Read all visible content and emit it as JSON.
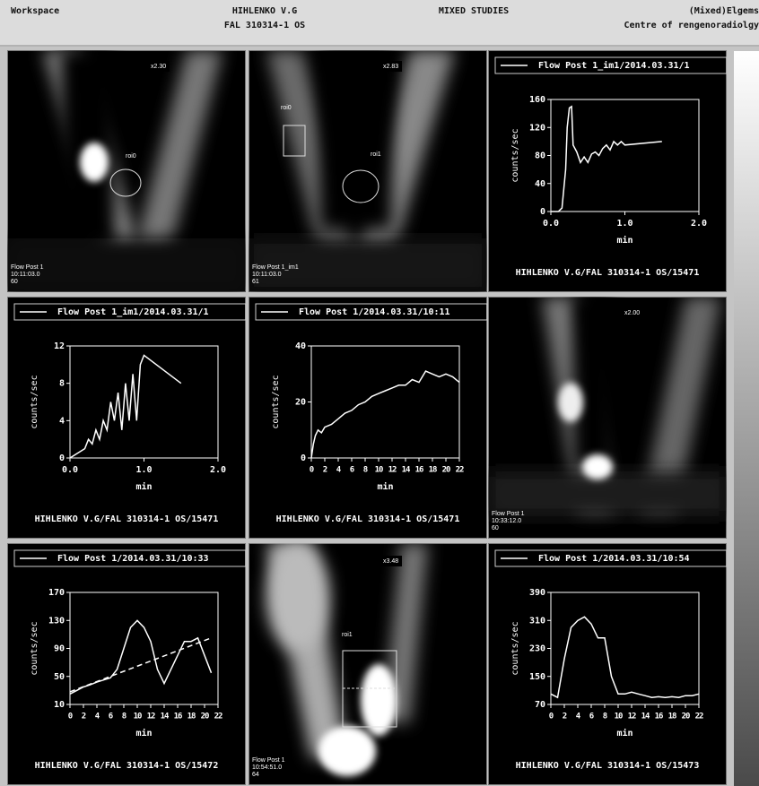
{
  "header": {
    "workspace": "Workspace",
    "patient": "HIHLENKO V.G",
    "study_id": "FAL 310314-1 OS",
    "study": "MIXED STUDIES",
    "vendor": "(Mixed)Elgems",
    "centre": "Centre of rengenoradiolgy"
  },
  "image_panels": [
    {
      "zoom": "x2.30",
      "rois": [
        "roi0"
      ],
      "footer": [
        "Flow Post 1",
        "10:11:03.0",
        "60"
      ]
    },
    {
      "zoom": "x2.83",
      "rois": [
        "roi0",
        "roi1"
      ],
      "footer": [
        "Flow Post 1_im1",
        "10:11:03.0",
        "61"
      ]
    },
    {
      "zoom": "x2.00",
      "rois": [],
      "footer": [
        "Flow Post 1",
        "10:33:12.0",
        "60"
      ]
    },
    {
      "zoom": "x3.48",
      "rois": [
        "roi1"
      ],
      "footer": [
        "Flow Post 1",
        "10:54:51.0",
        "64"
      ]
    }
  ],
  "chart_data": [
    {
      "type": "line",
      "ylabel": "counts/sec",
      "xlabel": "min",
      "footer": "HIHLENKO V.G/FAL 310314-1 OS/15471",
      "xlim": [
        0,
        2
      ],
      "xticks": [
        {
          "value": 0,
          "label": "0.0"
        },
        {
          "value": 1,
          "label": "1.0"
        },
        {
          "value": 2,
          "label": "2.0"
        }
      ],
      "ylim": [
        0,
        160
      ],
      "yticks": [
        0,
        40,
        80,
        120,
        160
      ],
      "x": [
        0,
        0.1,
        0.15,
        0.2,
        0.22,
        0.25,
        0.28,
        0.3,
        0.35,
        0.4,
        0.45,
        0.5,
        0.55,
        0.6,
        0.65,
        0.7,
        0.75,
        0.8,
        0.85,
        0.9,
        0.95,
        1.0,
        1.5
      ],
      "series": [
        {
          "name": "Flow Post 1_im1/2014.03.31/1",
          "color": "#ffffff",
          "values": [
            0,
            0,
            5,
            60,
            120,
            148,
            150,
            95,
            85,
            70,
            78,
            70,
            82,
            85,
            80,
            90,
            95,
            88,
            100,
            95,
            100,
            95,
            100
          ]
        }
      ]
    },
    {
      "type": "line",
      "ylabel": "counts/sec",
      "xlabel": "min",
      "footer": "HIHLENKO V.G/FAL 310314-1 OS/15471",
      "xlim": [
        0,
        2
      ],
      "xticks": [
        {
          "value": 0,
          "label": "0.0"
        },
        {
          "value": 1,
          "label": "1.0"
        },
        {
          "value": 2,
          "label": "2.0"
        }
      ],
      "ylim": [
        0,
        12
      ],
      "yticks": [
        0,
        4,
        8,
        12
      ],
      "x": [
        0,
        0.1,
        0.2,
        0.25,
        0.3,
        0.35,
        0.4,
        0.45,
        0.5,
        0.55,
        0.6,
        0.65,
        0.7,
        0.75,
        0.8,
        0.85,
        0.9,
        0.95,
        1.0,
        1.5
      ],
      "series": [
        {
          "name": "Flow Post 1_im1/2014.03.31/1",
          "color": "#ffffff",
          "values": [
            0,
            0.5,
            1,
            2,
            1.5,
            3,
            2,
            4,
            3,
            6,
            4,
            7,
            3,
            8,
            4,
            9,
            4,
            10,
            11,
            8
          ]
        }
      ]
    },
    {
      "type": "line",
      "ylabel": "counts/sec",
      "xlabel": "min",
      "footer": "HIHLENKO V.G/FAL 310314-1 OS/15471",
      "xlim": [
        0,
        22
      ],
      "xticks": [
        0,
        2,
        4,
        6,
        8,
        10,
        12,
        14,
        16,
        18,
        20,
        22
      ],
      "ylim": [
        0,
        40
      ],
      "yticks": [
        0,
        20,
        40
      ],
      "x": [
        0,
        0.3,
        0.6,
        1,
        1.5,
        2,
        3,
        4,
        5,
        6,
        7,
        8,
        9,
        10,
        11,
        12,
        13,
        14,
        15,
        16,
        17,
        18,
        19,
        20,
        21,
        22
      ],
      "series": [
        {
          "name": "Flow Post 1/2014.03.31/10:11",
          "color": "#ffffff",
          "values": [
            0,
            5,
            8,
            10,
            9,
            11,
            12,
            14,
            16,
            17,
            19,
            20,
            22,
            23,
            24,
            25,
            26,
            26,
            28,
            27,
            31,
            30,
            29,
            30,
            29,
            27
          ]
        }
      ]
    },
    {
      "type": "line",
      "ylabel": "counts/sec",
      "xlabel": "min",
      "footer": "HIHLENKO V.G/FAL 310314-1 OS/15472",
      "xlim": [
        0,
        22
      ],
      "xticks": [
        0,
        2,
        4,
        6,
        8,
        10,
        12,
        14,
        16,
        18,
        20,
        22
      ],
      "ylim": [
        10,
        170
      ],
      "yticks": [
        10,
        50,
        90,
        130,
        170
      ],
      "x": [
        0,
        1,
        2,
        3,
        4,
        5,
        6,
        7,
        8,
        9,
        10,
        11,
        12,
        13,
        14,
        15,
        16,
        17,
        18,
        19,
        20,
        21
      ],
      "series": [
        {
          "name": "Flow Post 1/2014.03.31/10:33",
          "color": "#ffffff",
          "values": [
            25,
            30,
            35,
            38,
            42,
            45,
            48,
            60,
            90,
            120,
            130,
            120,
            100,
            60,
            40,
            60,
            80,
            100,
            100,
            105,
            80,
            55
          ]
        },
        {
          "color": "#ffffff",
          "dashed": true,
          "x": [
            0,
            21
          ],
          "values": [
            28,
            105
          ]
        }
      ]
    },
    {
      "type": "line",
      "ylabel": "counts/sec",
      "xlabel": "min",
      "footer": "HIHLENKO V.G/FAL 310314-1 OS/15473",
      "xlim": [
        0,
        22
      ],
      "xticks": [
        0,
        2,
        4,
        6,
        8,
        10,
        12,
        14,
        16,
        18,
        20,
        22
      ],
      "ylim": [
        70,
        390
      ],
      "yticks": [
        70,
        150,
        230,
        310,
        390
      ],
      "x": [
        0,
        1,
        2,
        3,
        4,
        5,
        6,
        7,
        8,
        9,
        10,
        11,
        12,
        13,
        14,
        15,
        16,
        17,
        18,
        19,
        20,
        21,
        22
      ],
      "series": [
        {
          "name": "Flow Post 1/2014.03.31/10:54",
          "color": "#ffffff",
          "values": [
            100,
            90,
            200,
            290,
            310,
            320,
            300,
            260,
            260,
            150,
            100,
            100,
            105,
            100,
            95,
            90,
            92,
            90,
            92,
            90,
            95,
            95,
            100
          ]
        }
      ]
    }
  ]
}
